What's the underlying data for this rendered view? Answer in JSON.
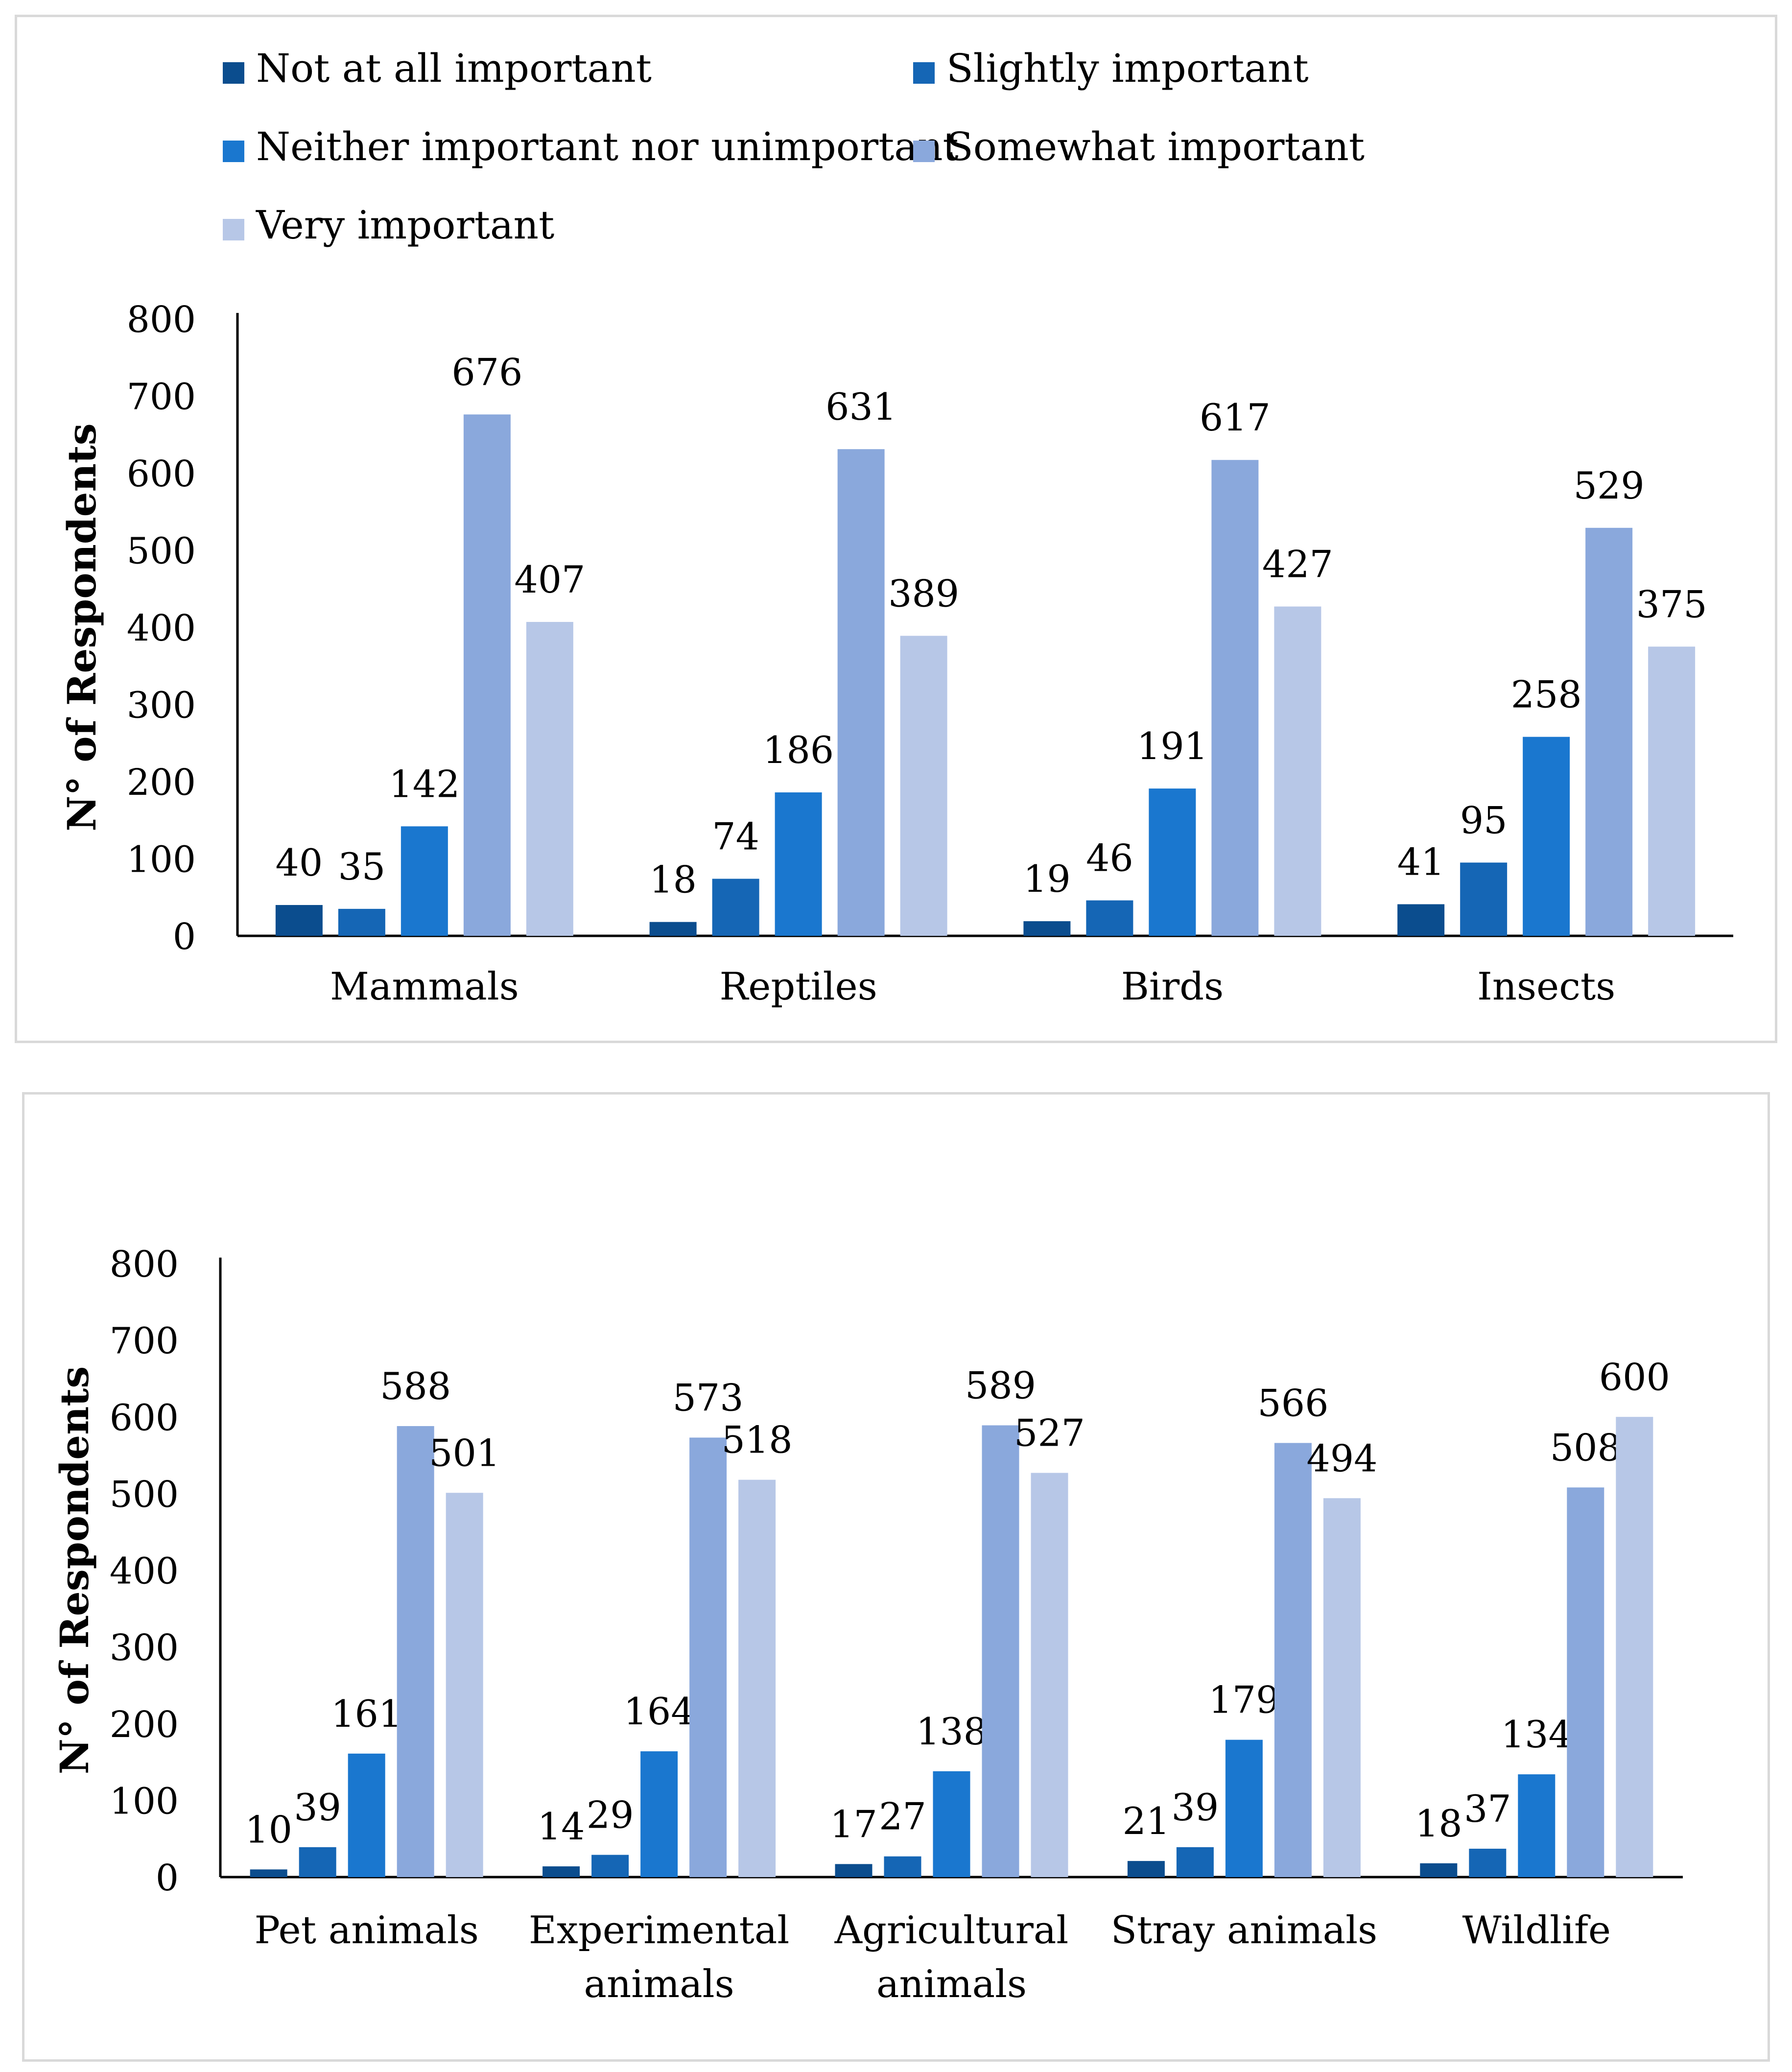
{
  "colors": {
    "not_at_all": "#0b4d8e",
    "slightly": "#1566b5",
    "neither": "#1a77cf",
    "somewhat": "#8aa8dc",
    "very": "#b7c7e7",
    "axis": "#000000",
    "border": "#d9d9d9"
  },
  "chart_data": [
    {
      "type": "bar",
      "title": "",
      "xlabel": "",
      "ylabel": "N° of Respondents",
      "ylim": [
        0,
        800
      ],
      "yticks": [
        "0",
        "100",
        "200",
        "300",
        "400",
        "500",
        "600",
        "700",
        "800"
      ],
      "legend_position": "top",
      "categories": [
        [
          "Mammals"
        ],
        [
          "Reptiles"
        ],
        [
          "Birds"
        ],
        [
          "Insects"
        ]
      ],
      "series": [
        {
          "name": "Not at all important",
          "color_key": "not_at_all",
          "values": [
            40,
            18,
            19,
            41
          ]
        },
        {
          "name": "Slightly important",
          "color_key": "slightly",
          "values": [
            35,
            74,
            46,
            95
          ]
        },
        {
          "name": "Neither important nor unimportant",
          "color_key": "neither",
          "values": [
            142,
            186,
            191,
            258
          ]
        },
        {
          "name": "Somewhat important",
          "color_key": "somewhat",
          "values": [
            676,
            631,
            617,
            529
          ]
        },
        {
          "name": "Very important",
          "color_key": "very",
          "values": [
            407,
            389,
            427,
            375
          ]
        }
      ]
    },
    {
      "type": "bar",
      "title": "",
      "xlabel": "",
      "ylabel": "N° of Respondents",
      "ylim": [
        0,
        800
      ],
      "yticks": [
        "0",
        "100",
        "200",
        "300",
        "400",
        "500",
        "600",
        "700",
        "800"
      ],
      "legend_position": "none",
      "categories": [
        [
          "Pet animals"
        ],
        [
          "Experimental",
          "animals"
        ],
        [
          "Agricultural",
          "animals"
        ],
        [
          "Stray animals"
        ],
        [
          "Wildlife"
        ]
      ],
      "series": [
        {
          "name": "Not at all important",
          "color_key": "not_at_all",
          "values": [
            10,
            14,
            17,
            21,
            18
          ]
        },
        {
          "name": "Slightly important",
          "color_key": "slightly",
          "values": [
            39,
            29,
            27,
            39,
            37
          ]
        },
        {
          "name": "Neither important nor unimportant",
          "color_key": "neither",
          "values": [
            161,
            164,
            138,
            179,
            134
          ]
        },
        {
          "name": "Somewhat important",
          "color_key": "somewhat",
          "values": [
            588,
            573,
            589,
            566,
            508
          ]
        },
        {
          "name": "Very important",
          "color_key": "very",
          "values": [
            501,
            518,
            527,
            494,
            600
          ]
        }
      ]
    }
  ]
}
